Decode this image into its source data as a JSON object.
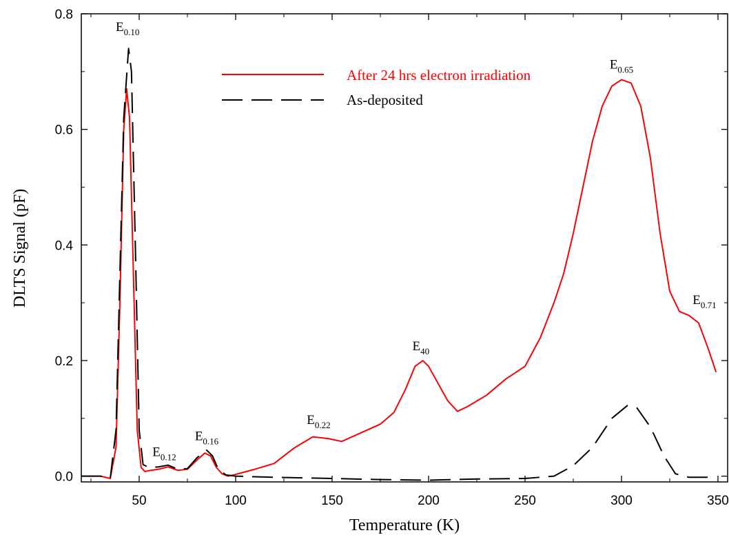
{
  "chart_data": {
    "type": "line",
    "title": "",
    "xlabel": "Temperature (K)",
    "ylabel": "DLTS Signal (pF)",
    "xlim": [
      20,
      355
    ],
    "ylim": [
      -0.01,
      0.8
    ],
    "xticks": [
      50,
      100,
      150,
      200,
      250,
      300,
      350
    ],
    "yticks": [
      0.0,
      0.2,
      0.4,
      0.6,
      0.8
    ],
    "xtick_labels": [
      "50",
      "100",
      "150",
      "200",
      "250",
      "300",
      "350"
    ],
    "ytick_labels": [
      "0.0",
      "0.2",
      "0.4",
      "0.6",
      "0.8"
    ],
    "legend_position": "top-center",
    "series": [
      {
        "name": "After 24 hrs electron irradiation",
        "color": "#ff0000",
        "style": "solid",
        "points": [
          [
            20,
            0.0
          ],
          [
            30,
            0.0
          ],
          [
            35,
            -0.004
          ],
          [
            38,
            0.05
          ],
          [
            40,
            0.3
          ],
          [
            42,
            0.6
          ],
          [
            43.5,
            0.67
          ],
          [
            45,
            0.62
          ],
          [
            47,
            0.35
          ],
          [
            49,
            0.08
          ],
          [
            51,
            0.015
          ],
          [
            53,
            0.008
          ],
          [
            56,
            0.01
          ],
          [
            60,
            0.012
          ],
          [
            65,
            0.016
          ],
          [
            70,
            0.01
          ],
          [
            75,
            0.012
          ],
          [
            80,
            0.028
          ],
          [
            84,
            0.04
          ],
          [
            87,
            0.035
          ],
          [
            90,
            0.015
          ],
          [
            93,
            0.004
          ],
          [
            96,
            0.0
          ],
          [
            100,
            0.003
          ],
          [
            110,
            0.012
          ],
          [
            120,
            0.022
          ],
          [
            130,
            0.048
          ],
          [
            140,
            0.068
          ],
          [
            148,
            0.065
          ],
          [
            155,
            0.06
          ],
          [
            165,
            0.075
          ],
          [
            175,
            0.09
          ],
          [
            182,
            0.11
          ],
          [
            188,
            0.15
          ],
          [
            193,
            0.19
          ],
          [
            197,
            0.2
          ],
          [
            200,
            0.19
          ],
          [
            205,
            0.16
          ],
          [
            210,
            0.13
          ],
          [
            215,
            0.112
          ],
          [
            220,
            0.12
          ],
          [
            230,
            0.14
          ],
          [
            240,
            0.168
          ],
          [
            250,
            0.19
          ],
          [
            258,
            0.24
          ],
          [
            265,
            0.3
          ],
          [
            270,
            0.35
          ],
          [
            275,
            0.42
          ],
          [
            280,
            0.5
          ],
          [
            285,
            0.58
          ],
          [
            290,
            0.64
          ],
          [
            295,
            0.675
          ],
          [
            300,
            0.686
          ],
          [
            305,
            0.68
          ],
          [
            310,
            0.64
          ],
          [
            315,
            0.55
          ],
          [
            320,
            0.42
          ],
          [
            325,
            0.32
          ],
          [
            330,
            0.285
          ],
          [
            335,
            0.278
          ],
          [
            340,
            0.265
          ],
          [
            345,
            0.22
          ],
          [
            349,
            0.18
          ]
        ]
      },
      {
        "name": "As-deposited",
        "color": "#000000",
        "style": "dashed",
        "points": [
          [
            20,
            0.0
          ],
          [
            30,
            0.0
          ],
          [
            35,
            -0.004
          ],
          [
            38,
            0.08
          ],
          [
            40,
            0.35
          ],
          [
            42,
            0.62
          ],
          [
            44.5,
            0.74
          ],
          [
            46,
            0.7
          ],
          [
            48,
            0.4
          ],
          [
            50,
            0.08
          ],
          [
            52,
            0.02
          ],
          [
            55,
            0.015
          ],
          [
            60,
            0.016
          ],
          [
            65,
            0.019
          ],
          [
            70,
            0.012
          ],
          [
            75,
            0.013
          ],
          [
            80,
            0.032
          ],
          [
            85,
            0.045
          ],
          [
            88,
            0.035
          ],
          [
            91,
            0.012
          ],
          [
            95,
            0.002
          ],
          [
            100,
            0.0
          ],
          [
            120,
            -0.002
          ],
          [
            150,
            -0.004
          ],
          [
            175,
            -0.006
          ],
          [
            200,
            -0.007
          ],
          [
            225,
            -0.005
          ],
          [
            250,
            -0.004
          ],
          [
            265,
            0.0
          ],
          [
            275,
            0.018
          ],
          [
            285,
            0.05
          ],
          [
            295,
            0.1
          ],
          [
            303,
            0.122
          ],
          [
            308,
            0.118
          ],
          [
            315,
            0.085
          ],
          [
            322,
            0.035
          ],
          [
            328,
            0.004
          ],
          [
            335,
            -0.002
          ],
          [
            349,
            -0.002
          ]
        ]
      }
    ],
    "annotations": [
      {
        "main": "E",
        "sub": "0.10",
        "x": 44,
        "y": 0.77
      },
      {
        "main": "E",
        "sub": "0.12",
        "x": 63,
        "y": 0.035
      },
      {
        "main": "E",
        "sub": "0.16",
        "x": 85,
        "y": 0.062
      },
      {
        "main": "E",
        "sub": "0.22",
        "x": 143,
        "y": 0.09
      },
      {
        "main": "E",
        "sub": "40",
        "x": 196,
        "y": 0.218
      },
      {
        "main": "E",
        "sub": "0.65",
        "x": 300,
        "y": 0.705
      },
      {
        "main": "E",
        "sub": "0.71",
        "x": 343,
        "y": 0.298
      }
    ]
  }
}
